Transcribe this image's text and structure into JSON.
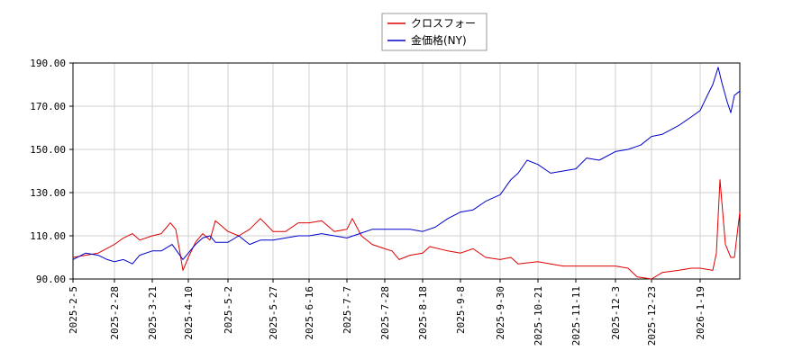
{
  "chart_data": {
    "type": "line",
    "title": "",
    "xlabel": "",
    "ylabel": "",
    "ylim": [
      90,
      190
    ],
    "y_ticks": [
      90,
      110,
      130,
      150,
      170,
      190
    ],
    "y_tick_labels": [
      "90.00",
      "110.00",
      "130.00",
      "150.00",
      "170.00",
      "190.00"
    ],
    "x_range": [
      "2025-02-05",
      "2026-02-10"
    ],
    "x_ticks": [
      "2025-2-5",
      "2025-2-28",
      "2025-3-21",
      "2025-4-10",
      "2025-5-2",
      "2025-5-27",
      "2025-6-16",
      "2025-7-7",
      "2025-7-28",
      "2025-8-18",
      "2025-9-8",
      "2025-9-30",
      "2025-10-21",
      "2025-11-11",
      "2025-12-3",
      "2025-12-23",
      "2026-1-19"
    ],
    "grid": true,
    "legend_position": "top-center",
    "series": [
      {
        "name": "クロスフォー",
        "color": "#dd0000",
        "points": [
          [
            "2025-02-05",
            100
          ],
          [
            "2025-02-12",
            101
          ],
          [
            "2025-02-19",
            102
          ],
          [
            "2025-02-28",
            106
          ],
          [
            "2025-03-05",
            109
          ],
          [
            "2025-03-10",
            111
          ],
          [
            "2025-03-14",
            108
          ],
          [
            "2025-03-21",
            110
          ],
          [
            "2025-03-26",
            111
          ],
          [
            "2025-03-31",
            116
          ],
          [
            "2025-04-03",
            113
          ],
          [
            "2025-04-05",
            104
          ],
          [
            "2025-04-07",
            94
          ],
          [
            "2025-04-10",
            100
          ],
          [
            "2025-04-14",
            107
          ],
          [
            "2025-04-18",
            111
          ],
          [
            "2025-04-22",
            108
          ],
          [
            "2025-04-25",
            117
          ],
          [
            "2025-05-02",
            112
          ],
          [
            "2025-05-08",
            110
          ],
          [
            "2025-05-14",
            113
          ],
          [
            "2025-05-20",
            118
          ],
          [
            "2025-05-27",
            112
          ],
          [
            "2025-06-03",
            112
          ],
          [
            "2025-06-10",
            116
          ],
          [
            "2025-06-16",
            116
          ],
          [
            "2025-06-23",
            117
          ],
          [
            "2025-06-30",
            112
          ],
          [
            "2025-07-07",
            113
          ],
          [
            "2025-07-10",
            118
          ],
          [
            "2025-07-15",
            110
          ],
          [
            "2025-07-21",
            106
          ],
          [
            "2025-07-28",
            104
          ],
          [
            "2025-08-01",
            103
          ],
          [
            "2025-08-05",
            99
          ],
          [
            "2025-08-11",
            101
          ],
          [
            "2025-08-18",
            102
          ],
          [
            "2025-08-22",
            105
          ],
          [
            "2025-09-01",
            103
          ],
          [
            "2025-09-08",
            102
          ],
          [
            "2025-09-15",
            104
          ],
          [
            "2025-09-22",
            100
          ],
          [
            "2025-09-30",
            99
          ],
          [
            "2025-10-06",
            100
          ],
          [
            "2025-10-10",
            97
          ],
          [
            "2025-10-21",
            98
          ],
          [
            "2025-10-28",
            97
          ],
          [
            "2025-11-04",
            96
          ],
          [
            "2025-11-11",
            96
          ],
          [
            "2025-11-20",
            96
          ],
          [
            "2025-12-03",
            96
          ],
          [
            "2025-12-10",
            95
          ],
          [
            "2025-12-15",
            91
          ],
          [
            "2025-12-23",
            90
          ],
          [
            "2025-12-29",
            93
          ],
          [
            "2026-01-07",
            94
          ],
          [
            "2026-01-14",
            95
          ],
          [
            "2026-01-19",
            95
          ],
          [
            "2026-01-26",
            94
          ],
          [
            "2026-01-28",
            102
          ],
          [
            "2026-01-30",
            136
          ],
          [
            "2026-02-02",
            106
          ],
          [
            "2026-02-05",
            100
          ],
          [
            "2026-02-07",
            100
          ],
          [
            "2026-02-10",
            121
          ]
        ]
      },
      {
        "name": "金価格(NY)",
        "color": "#0000cc",
        "points": [
          [
            "2025-02-05",
            99
          ],
          [
            "2025-02-12",
            102
          ],
          [
            "2025-02-19",
            101
          ],
          [
            "2025-02-24",
            99
          ],
          [
            "2025-02-28",
            98
          ],
          [
            "2025-03-05",
            99
          ],
          [
            "2025-03-10",
            97
          ],
          [
            "2025-03-14",
            101
          ],
          [
            "2025-03-21",
            103
          ],
          [
            "2025-03-26",
            103
          ],
          [
            "2025-04-01",
            106
          ],
          [
            "2025-04-07",
            99
          ],
          [
            "2025-04-10",
            102
          ],
          [
            "2025-04-14",
            106
          ],
          [
            "2025-04-18",
            109
          ],
          [
            "2025-04-22",
            110
          ],
          [
            "2025-04-25",
            107
          ],
          [
            "2025-05-02",
            107
          ],
          [
            "2025-05-08",
            110
          ],
          [
            "2025-05-14",
            106
          ],
          [
            "2025-05-20",
            108
          ],
          [
            "2025-05-27",
            108
          ],
          [
            "2025-06-03",
            109
          ],
          [
            "2025-06-10",
            110
          ],
          [
            "2025-06-16",
            110
          ],
          [
            "2025-06-23",
            111
          ],
          [
            "2025-06-30",
            110
          ],
          [
            "2025-07-07",
            109
          ],
          [
            "2025-07-14",
            111
          ],
          [
            "2025-07-21",
            113
          ],
          [
            "2025-07-28",
            113
          ],
          [
            "2025-08-04",
            113
          ],
          [
            "2025-08-11",
            113
          ],
          [
            "2025-08-18",
            112
          ],
          [
            "2025-08-25",
            114
          ],
          [
            "2025-09-01",
            118
          ],
          [
            "2025-09-08",
            121
          ],
          [
            "2025-09-15",
            122
          ],
          [
            "2025-09-22",
            126
          ],
          [
            "2025-09-30",
            129
          ],
          [
            "2025-10-06",
            136
          ],
          [
            "2025-10-10",
            139
          ],
          [
            "2025-10-15",
            145
          ],
          [
            "2025-10-21",
            143
          ],
          [
            "2025-10-28",
            139
          ],
          [
            "2025-11-04",
            140
          ],
          [
            "2025-11-11",
            141
          ],
          [
            "2025-11-17",
            146
          ],
          [
            "2025-11-24",
            145
          ],
          [
            "2025-12-03",
            149
          ],
          [
            "2025-12-10",
            150
          ],
          [
            "2025-12-17",
            152
          ],
          [
            "2025-12-23",
            156
          ],
          [
            "2025-12-29",
            157
          ],
          [
            "2026-01-07",
            161
          ],
          [
            "2026-01-14",
            165
          ],
          [
            "2026-01-19",
            168
          ],
          [
            "2026-01-23",
            175
          ],
          [
            "2026-01-26",
            180
          ],
          [
            "2026-01-29",
            188
          ],
          [
            "2026-01-31",
            181
          ],
          [
            "2026-02-03",
            172
          ],
          [
            "2026-02-05",
            167
          ],
          [
            "2026-02-07",
            175
          ],
          [
            "2026-02-10",
            177
          ]
        ]
      }
    ]
  }
}
